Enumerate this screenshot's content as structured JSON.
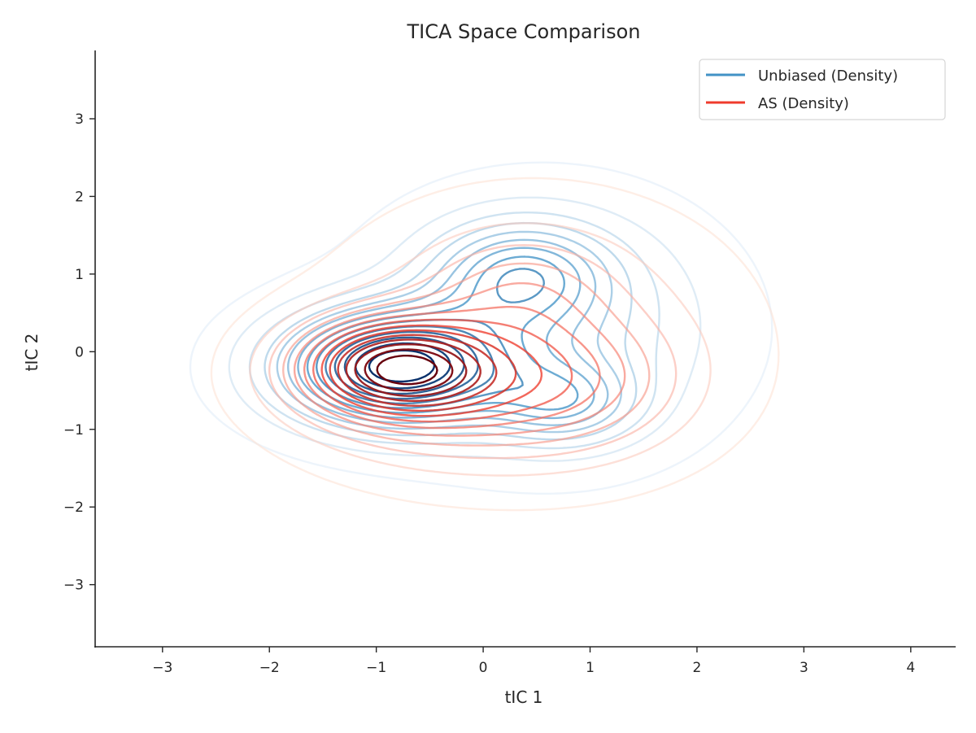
{
  "chart_data": {
    "type": "contour",
    "title": "TICA Space Comparison",
    "xlabel": "tIC 1",
    "ylabel": "tIC 2",
    "xlim": [
      -3.63,
      4.42
    ],
    "ylim": [
      -3.8,
      3.88
    ],
    "xticks": [
      -3,
      -2,
      -1,
      0,
      1,
      2,
      3,
      4
    ],
    "yticks": [
      -3,
      -2,
      -1,
      0,
      1,
      2,
      3
    ],
    "grid": false,
    "legend_position": "top-right",
    "series": [
      {
        "name": "Unbiased (Density)",
        "color": "#4292c6",
        "components": [
          {
            "x": -0.85,
            "y": -0.2,
            "sx": 0.72,
            "sy": 0.5,
            "w": 1.0
          },
          {
            "x": 0.35,
            "y": 1.0,
            "sx": 0.55,
            "sy": 0.45,
            "w": 0.42
          },
          {
            "x": 0.75,
            "y": -0.65,
            "sx": 0.45,
            "sy": 0.35,
            "w": 0.35
          },
          {
            "x": 0.6,
            "y": 0.3,
            "sx": 1.0,
            "sy": 1.0,
            "w": 0.3
          }
        ]
      },
      {
        "name": "AS (Density)",
        "color": "#ef3b2c",
        "components": [
          {
            "x": -0.85,
            "y": -0.2,
            "sx": 0.6,
            "sy": 0.42,
            "w": 1.0
          },
          {
            "x": -0.3,
            "y": -0.5,
            "sx": 0.9,
            "sy": 0.6,
            "w": 0.4
          },
          {
            "x": 0.35,
            "y": 0.8,
            "sx": 0.6,
            "sy": 0.5,
            "w": 0.22
          },
          {
            "x": 0.9,
            "y": -0.4,
            "sx": 0.7,
            "sy": 0.6,
            "w": 0.25
          },
          {
            "x": 0.5,
            "y": 0.2,
            "sx": 1.2,
            "sy": 1.1,
            "w": 0.22
          }
        ]
      }
    ]
  }
}
